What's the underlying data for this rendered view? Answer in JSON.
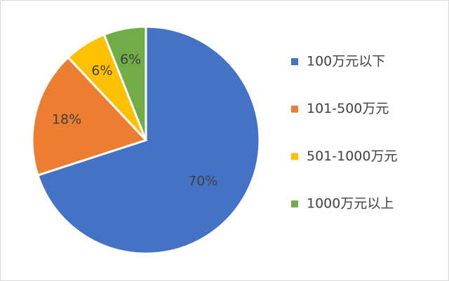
{
  "chart_data": {
    "type": "pie",
    "categories": [
      "100万元以下",
      "101-500万元",
      "501-1000万元",
      "1000万元以上"
    ],
    "values": [
      70,
      18,
      6,
      6
    ],
    "value_labels": [
      "70%",
      "18%",
      "6%",
      "6%"
    ],
    "colors": [
      "#4472c4",
      "#ed7d31",
      "#ffc000",
      "#70ad47"
    ],
    "legend": "right"
  }
}
